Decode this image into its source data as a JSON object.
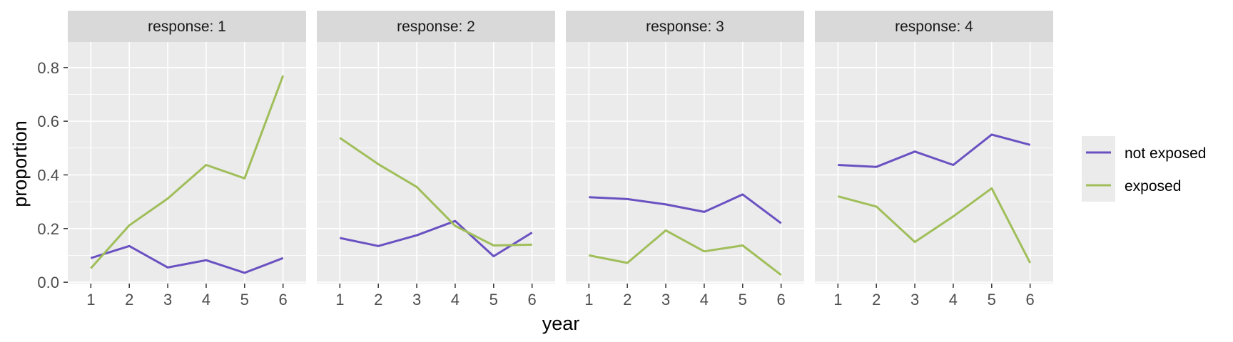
{
  "chart_data": {
    "type": "line",
    "xlabel": "year",
    "ylabel": "proportion",
    "x": [
      1,
      2,
      3,
      4,
      5,
      6
    ],
    "xticks": [
      "1",
      "2",
      "3",
      "4",
      "5",
      "6"
    ],
    "ylim": [
      -0.005,
      0.895
    ],
    "yticks": [
      0.0,
      0.2,
      0.4,
      0.6,
      0.8
    ],
    "ytick_labels": [
      "0.0",
      "0.2",
      "0.4",
      "0.6",
      "0.8"
    ],
    "grid": true,
    "legend_position": "right",
    "legend": [
      {
        "name": "not exposed",
        "color": "#6a51c2"
      },
      {
        "name": "exposed",
        "color": "#a0be5a"
      }
    ],
    "panels": [
      {
        "label": "response: 1",
        "series": [
          {
            "name": "not exposed",
            "values": [
              0.09,
              0.135,
              0.055,
              0.082,
              0.035,
              0.09
            ]
          },
          {
            "name": "exposed",
            "values": [
              0.052,
              0.212,
              0.312,
              0.437,
              0.387,
              0.77
            ]
          }
        ]
      },
      {
        "label": "response: 2",
        "series": [
          {
            "name": "not exposed",
            "values": [
              0.165,
              0.135,
              0.175,
              0.228,
              0.097,
              0.185
            ]
          },
          {
            "name": "exposed",
            "values": [
              0.538,
              0.44,
              0.355,
              0.21,
              0.137,
              0.14
            ]
          }
        ]
      },
      {
        "label": "response: 3",
        "series": [
          {
            "name": "not exposed",
            "values": [
              0.317,
              0.31,
              0.29,
              0.262,
              0.327,
              0.22
            ]
          },
          {
            "name": "exposed",
            "values": [
              0.1,
              0.072,
              0.193,
              0.115,
              0.137,
              0.027
            ]
          }
        ]
      },
      {
        "label": "response: 4",
        "series": [
          {
            "name": "not exposed",
            "values": [
              0.437,
              0.43,
              0.487,
              0.437,
              0.55,
              0.512
            ]
          },
          {
            "name": "exposed",
            "values": [
              0.32,
              0.282,
              0.15,
              0.245,
              0.35,
              0.072
            ]
          }
        ]
      }
    ]
  }
}
